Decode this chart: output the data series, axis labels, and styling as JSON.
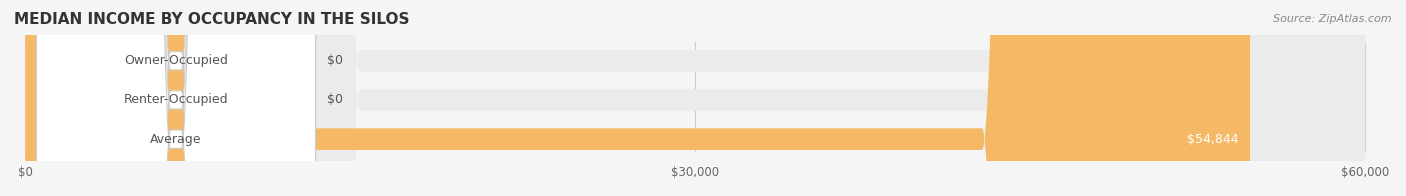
{
  "title": "MEDIAN INCOME BY OCCUPANCY IN THE SILOS",
  "source": "Source: ZipAtlas.com",
  "categories": [
    "Owner-Occupied",
    "Renter-Occupied",
    "Average"
  ],
  "values": [
    0,
    0,
    54844
  ],
  "max_value": 60000,
  "bar_colors": [
    "#7dd4d4",
    "#c8a8d8",
    "#f5b865"
  ],
  "bar_height": 0.55,
  "background_color": "#f5f5f5",
  "bar_background_color": "#ebebeb",
  "label_colors": [
    "#7dd4d4",
    "#c8a8d8",
    "#f5b865"
  ],
  "value_labels": [
    "$0",
    "$0",
    "$54,844"
  ],
  "x_ticks": [
    0,
    30000,
    60000
  ],
  "x_tick_labels": [
    "$0",
    "$30,000",
    "$60,000"
  ],
  "title_fontsize": 11,
  "label_fontsize": 9,
  "tick_fontsize": 8.5,
  "source_fontsize": 8
}
